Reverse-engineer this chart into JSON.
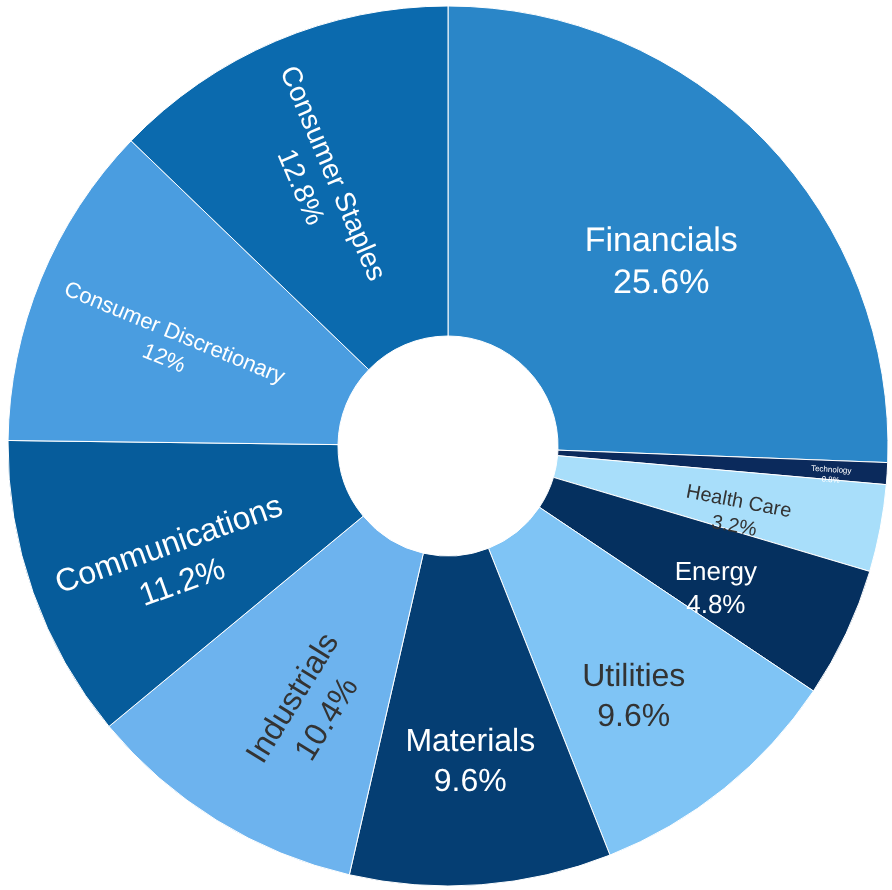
{
  "chart_data": {
    "type": "donut",
    "categories": [
      "Financials",
      "Technology",
      "Health Care",
      "Energy",
      "Utilities",
      "Materials",
      "Industrials",
      "Communications",
      "Consumer Discretionary",
      "Consumer Staples"
    ],
    "values": [
      25.6,
      0.8,
      3.2,
      4.8,
      9.6,
      9.6,
      10.4,
      11.2,
      12,
      12.8
    ],
    "value_labels": [
      "25.6%",
      "0.8%",
      "3.2%",
      "4.8%",
      "9.6%",
      "9.6%",
      "10.4%",
      "11.2%",
      "12%",
      "12.8%"
    ],
    "colors": [
      "#2a86c8",
      "#0b2a5c",
      "#a8defa",
      "#05305f",
      "#7fc4f5",
      "#053e73",
      "#6db3ee",
      "#065c9b",
      "#4a9de0",
      "#0b6aae"
    ],
    "legend": false
  }
}
